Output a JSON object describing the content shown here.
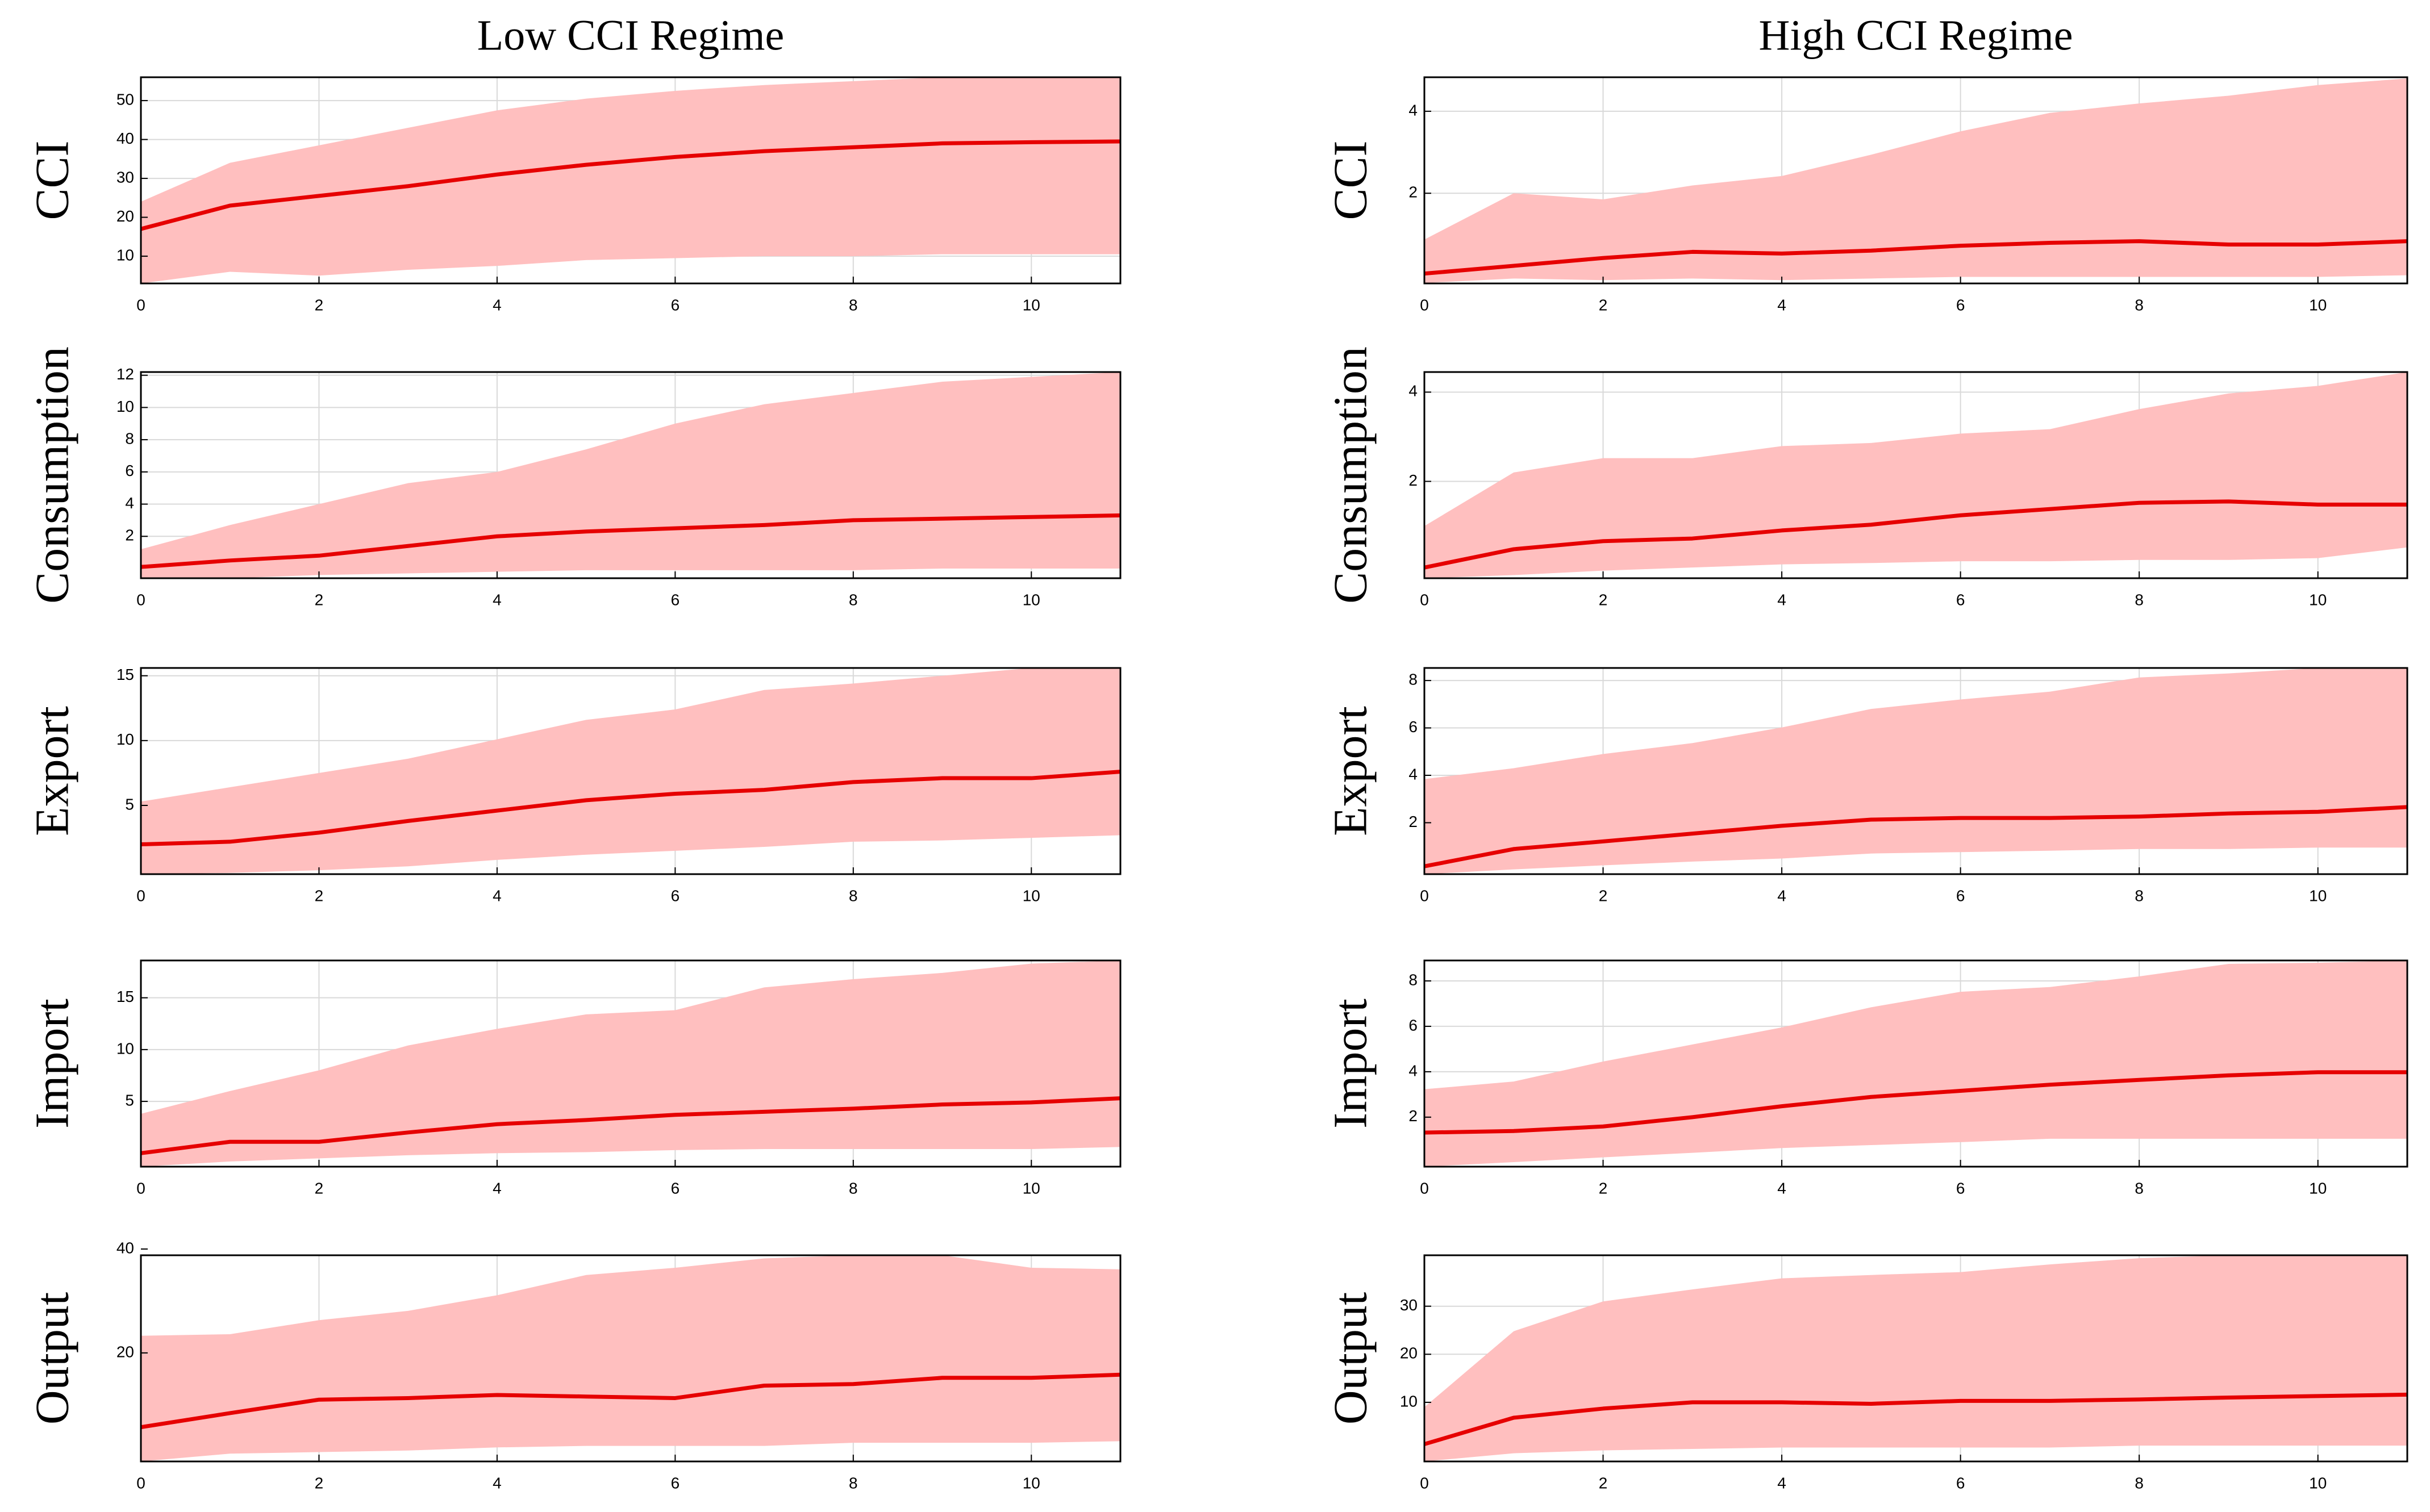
{
  "column_titles": [
    "Low CCI Regime",
    "High CCI Regime"
  ],
  "chart_data": [
    {
      "type": "line",
      "ylabel": "CCI",
      "x": [
        0,
        1,
        2,
        3,
        4,
        5,
        6,
        7,
        8,
        9,
        10,
        11
      ],
      "xlim": [
        0,
        11
      ],
      "xticks": [
        0,
        2,
        4,
        6,
        8,
        10
      ],
      "ylim": [
        3,
        56
      ],
      "yticks": [
        10,
        20,
        30,
        40,
        50
      ],
      "grid": true,
      "color": "#e60000",
      "band_color": "#ffbfbf",
      "values": [
        17,
        23,
        25.5,
        28,
        31,
        33.5,
        35.5,
        37,
        38,
        39,
        39.3,
        39.5
      ],
      "upper": [
        24,
        34,
        38.5,
        43,
        47.5,
        50.5,
        52.5,
        54,
        55,
        56,
        56,
        56
      ],
      "lower": [
        3,
        6,
        5,
        6.5,
        7.5,
        9,
        9.5,
        10,
        10,
        10.5,
        10.5,
        10.5
      ]
    },
    {
      "type": "line",
      "ylabel": "CCI",
      "x": [
        0,
        1,
        2,
        3,
        4,
        5,
        6,
        7,
        8,
        9,
        10,
        11
      ],
      "xlim": [
        0,
        11
      ],
      "xticks": [
        0,
        2,
        4,
        6,
        8,
        10
      ],
      "ylim": [
        -0.2,
        4.83
      ],
      "yticks": [
        2,
        4
      ],
      "grid": true,
      "color": "#e60000",
      "band_color": "#ffbfbf",
      "values": [
        0.04,
        0.23,
        0.42,
        0.57,
        0.53,
        0.6,
        0.72,
        0.79,
        0.83,
        0.75,
        0.75,
        0.83
      ],
      "upper": [
        0.87,
        2,
        1.85,
        2.19,
        2.42,
        2.94,
        3.51,
        3.96,
        4.19,
        4.38,
        4.64,
        4.8
      ],
      "lower": [
        -0.19,
        -0.08,
        -0.12,
        -0.08,
        -0.12,
        -0.08,
        -0.04,
        -0.04,
        -0.04,
        -0.04,
        -0.04,
        0
      ]
    },
    {
      "type": "line",
      "ylabel": "Consumption",
      "x": [
        0,
        1,
        2,
        3,
        4,
        5,
        6,
        7,
        8,
        9,
        10,
        11
      ],
      "xlim": [
        0,
        11
      ],
      "xticks": [
        0,
        2,
        4,
        6,
        8,
        10
      ],
      "ylim": [
        -0.6,
        12.2
      ],
      "yticks": [
        2,
        4,
        6,
        8,
        10,
        12
      ],
      "grid": true,
      "color": "#e60000",
      "band_color": "#ffbfbf",
      "values": [
        0.1,
        0.5,
        0.8,
        1.4,
        2,
        2.3,
        2.5,
        2.7,
        3,
        3.1,
        3.2,
        3.3
      ],
      "upper": [
        1.2,
        2.7,
        4,
        5.3,
        6,
        7.4,
        9,
        10.2,
        10.9,
        11.6,
        11.9,
        12.2
      ],
      "lower": [
        -0.6,
        -0.6,
        -0.4,
        -0.3,
        -0.2,
        -0.1,
        -0.1,
        -0.1,
        -0.1,
        0,
        0,
        0
      ]
    },
    {
      "type": "line",
      "ylabel": "Consumption",
      "x": [
        0,
        1,
        2,
        3,
        4,
        5,
        6,
        7,
        8,
        9,
        10,
        11
      ],
      "xlim": [
        0,
        11
      ],
      "xticks": [
        0,
        2,
        4,
        6,
        8,
        10
      ],
      "ylim": [
        -0.17,
        4.45
      ],
      "yticks": [
        2,
        4
      ],
      "grid": true,
      "color": "#e60000",
      "band_color": "#ffbfbf",
      "values": [
        0.07,
        0.48,
        0.66,
        0.72,
        0.9,
        1.03,
        1.24,
        1.38,
        1.52,
        1.55,
        1.48,
        1.48
      ],
      "upper": [
        1,
        2.2,
        2.52,
        2.52,
        2.79,
        2.86,
        3.07,
        3.17,
        3.62,
        3.97,
        4.14,
        4.45
      ],
      "lower": [
        -0.17,
        -0.1,
        0,
        0.07,
        0.14,
        0.17,
        0.21,
        0.21,
        0.24,
        0.24,
        0.28,
        0.52
      ]
    },
    {
      "type": "line",
      "ylabel": "Export",
      "x": [
        0,
        1,
        2,
        3,
        4,
        5,
        6,
        7,
        8,
        9,
        10,
        11
      ],
      "xlim": [
        0,
        11
      ],
      "xticks": [
        0,
        2,
        4,
        6,
        8,
        10
      ],
      "ylim": [
        -0.3,
        15.6
      ],
      "yticks": [
        5,
        10,
        15
      ],
      "grid": true,
      "color": "#e60000",
      "band_color": "#ffbfbf",
      "values": [
        2,
        2.2,
        2.9,
        3.8,
        4.6,
        5.4,
        5.9,
        6.2,
        6.8,
        7.1,
        7.1,
        7.6
      ],
      "upper": [
        5.3,
        6.4,
        7.5,
        8.6,
        10.1,
        11.6,
        12.4,
        13.9,
        14.4,
        15,
        15.6,
        15.6
      ],
      "lower": [
        -0.3,
        -0.2,
        0,
        0.3,
        0.8,
        1.2,
        1.5,
        1.8,
        2.2,
        2.3,
        2.5,
        2.7
      ]
    },
    {
      "type": "line",
      "ylabel": "Export",
      "x": [
        0,
        1,
        2,
        3,
        4,
        5,
        6,
        7,
        8,
        9,
        10,
        11
      ],
      "xlim": [
        0,
        11
      ],
      "xticks": [
        0,
        2,
        4,
        6,
        8,
        10
      ],
      "ylim": [
        -0.17,
        8.53
      ],
      "yticks": [
        2,
        4,
        6,
        8
      ],
      "grid": true,
      "color": "#e60000",
      "band_color": "#ffbfbf",
      "values": [
        0.16,
        0.89,
        1.21,
        1.54,
        1.87,
        2.13,
        2.2,
        2.2,
        2.26,
        2.39,
        2.46,
        2.66
      ],
      "upper": [
        3.84,
        4.3,
        4.9,
        5.36,
        6.02,
        6.8,
        7.2,
        7.53,
        8.13,
        8.3,
        8.53,
        8.53
      ],
      "lower": [
        -0.17,
        0.03,
        0.2,
        0.36,
        0.49,
        0.7,
        0.76,
        0.82,
        0.89,
        0.89,
        0.95,
        0.95
      ]
    },
    {
      "type": "line",
      "ylabel": "Import",
      "x": [
        0,
        1,
        2,
        3,
        4,
        5,
        6,
        7,
        8,
        9,
        10,
        11
      ],
      "xlim": [
        0,
        11
      ],
      "xticks": [
        0,
        2,
        4,
        6,
        8,
        10
      ],
      "ylim": [
        -1.3,
        18.6
      ],
      "yticks": [
        5,
        10,
        15
      ],
      "grid": true,
      "color": "#e60000",
      "band_color": "#ffbfbf",
      "values": [
        0,
        1.1,
        1.1,
        2,
        2.8,
        3.2,
        3.7,
        4,
        4.3,
        4.7,
        4.9,
        5.3
      ],
      "upper": [
        3.8,
        6,
        8,
        10.4,
        12,
        13.4,
        13.8,
        16,
        16.8,
        17.4,
        18.3,
        18.6
      ],
      "lower": [
        -1.3,
        -0.8,
        -0.5,
        -0.2,
        0,
        0.1,
        0.3,
        0.4,
        0.4,
        0.4,
        0.4,
        0.6
      ]
    },
    {
      "type": "line",
      "ylabel": "Import",
      "x": [
        0,
        1,
        2,
        3,
        4,
        5,
        6,
        7,
        8,
        9,
        10,
        11
      ],
      "xlim": [
        0,
        11
      ],
      "xticks": [
        0,
        2,
        4,
        6,
        8,
        10
      ],
      "ylim": [
        -0.18,
        8.9
      ],
      "yticks": [
        2,
        4,
        6,
        8
      ],
      "grid": true,
      "color": "#e60000",
      "band_color": "#ffbfbf",
      "values": [
        1.32,
        1.39,
        1.59,
        2,
        2.48,
        2.89,
        3.16,
        3.43,
        3.64,
        3.84,
        3.98,
        3.98
      ],
      "upper": [
        3.23,
        3.57,
        4.45,
        5.2,
        5.95,
        6.84,
        7.52,
        7.73,
        8.2,
        8.75,
        8.8,
        8.9
      ],
      "lower": [
        -0.18,
        0.02,
        0.23,
        0.43,
        0.64,
        0.77,
        0.9,
        1.05,
        1.05,
        1.05,
        1.05,
        1.05
      ]
    },
    {
      "type": "line",
      "ylabel": "Output",
      "x": [
        0,
        1,
        2,
        3,
        4,
        5,
        6,
        7,
        8,
        9,
        10,
        11
      ],
      "xlim": [
        0,
        11
      ],
      "xticks": [
        0,
        2,
        4,
        6,
        8,
        10
      ],
      "ylim": [
        -0.9,
        38.8
      ],
      "yticks": [
        20,
        40
      ],
      "grid": true,
      "color": "#e60000",
      "band_color": "#ffbfbf",
      "values": [
        5.7,
        8.4,
        11,
        11.3,
        11.9,
        11.6,
        11.3,
        13.7,
        14,
        15.2,
        15.2,
        15.8
      ],
      "upper": [
        23.3,
        23.6,
        26.3,
        28.1,
        31.1,
        35,
        36.4,
        38.2,
        38.8,
        38.8,
        36.4,
        36.1
      ],
      "lower": [
        -0.9,
        0.6,
        0.9,
        1.2,
        1.8,
        2.1,
        2.1,
        2.1,
        2.7,
        2.7,
        2.7,
        3
      ]
    },
    {
      "type": "line",
      "ylabel": "Output",
      "x": [
        0,
        1,
        2,
        3,
        4,
        5,
        6,
        7,
        8,
        9,
        10,
        11
      ],
      "xlim": [
        0,
        11
      ],
      "xticks": [
        0,
        2,
        4,
        6,
        8,
        10
      ],
      "ylim": [
        -2.3,
        40.6
      ],
      "yticks": [
        10,
        20,
        30
      ],
      "grid": true,
      "color": "#e60000",
      "band_color": "#ffbfbf",
      "values": [
        1.3,
        6.8,
        8.7,
        10,
        10,
        9.7,
        10.3,
        10.3,
        10.6,
        11,
        11.3,
        11.6
      ],
      "upper": [
        9,
        24.8,
        31,
        33.5,
        35.8,
        36.5,
        37.1,
        38.7,
        40,
        40.6,
        40.6,
        40.6
      ],
      "lower": [
        -2.3,
        -0.6,
        0,
        0.3,
        0.6,
        0.6,
        0.6,
        0.6,
        1,
        1,
        1,
        1
      ]
    }
  ]
}
